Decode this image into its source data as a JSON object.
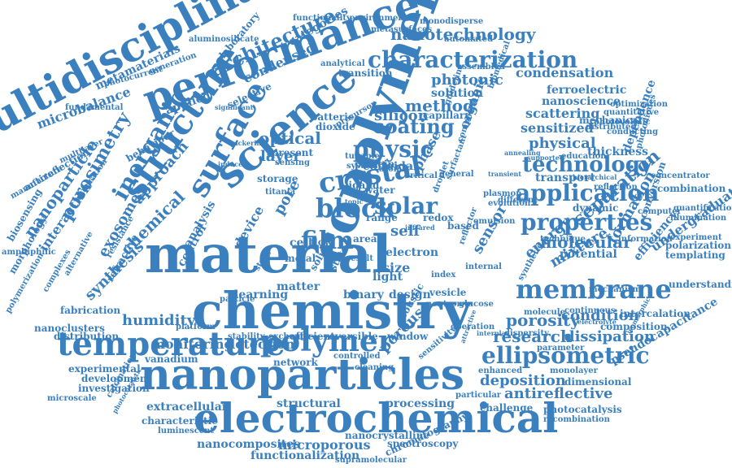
{
  "colors": {
    "text": "#3a7fbe",
    "background": "#ffffff"
  },
  "words": [
    {
      "text": "material"
    },
    {
      "text": "chemistry"
    },
    {
      "text": "nanoparticles"
    },
    {
      "text": "electrochemical"
    },
    {
      "text": "temperature"
    },
    {
      "text": "copolymer"
    },
    {
      "text": "multidisciplinary"
    },
    {
      "text": "performance"
    },
    {
      "text": "science"
    },
    {
      "text": "structure"
    },
    {
      "text": "surface"
    },
    {
      "text": "polymer"
    },
    {
      "text": "membrane"
    },
    {
      "text": "characterization"
    },
    {
      "text": "application"
    },
    {
      "text": "block"
    },
    {
      "text": "solar"
    },
    {
      "text": "crystal"
    },
    {
      "text": "film"
    },
    {
      "text": "ellipsometric"
    },
    {
      "text": "properties"
    },
    {
      "text": "technology"
    },
    {
      "text": "physic"
    },
    {
      "text": "coating"
    },
    {
      "text": "inorganic"
    },
    {
      "text": "porosimetry"
    },
    {
      "text": "nanoparticle"
    },
    {
      "text": "nanotechnology"
    },
    {
      "text": "architecture"
    },
    {
      "text": "condensed"
    },
    {
      "text": "optical"
    },
    {
      "text": "method"
    },
    {
      "text": "silicon"
    },
    {
      "text": "photonic"
    },
    {
      "text": "solution"
    },
    {
      "text": "condensation"
    },
    {
      "text": "ferroelectric"
    },
    {
      "text": "nanoscience"
    },
    {
      "text": "scattering"
    },
    {
      "text": "sensitized"
    },
    {
      "text": "physical"
    },
    {
      "text": "molecular"
    },
    {
      "text": "separation"
    },
    {
      "text": "porosity"
    },
    {
      "text": "condition"
    },
    {
      "text": "research"
    },
    {
      "text": "dissipation"
    },
    {
      "text": "deposition"
    },
    {
      "text": "antireflective"
    },
    {
      "text": "monitoring"
    },
    {
      "text": "detection"
    },
    {
      "text": "porous"
    },
    {
      "text": "humidity"
    },
    {
      "text": "chemical"
    },
    {
      "text": "synthesis"
    },
    {
      "text": "approach"
    },
    {
      "text": "interaction"
    },
    {
      "text": "microbalance"
    },
    {
      "text": "metamaterials"
    },
    {
      "text": "self"
    },
    {
      "text": "redox"
    },
    {
      "text": "pore"
    },
    {
      "text": "layer"
    },
    {
      "text": "cell"
    },
    {
      "text": "energy"
    },
    {
      "text": "sensor"
    },
    {
      "text": "mixture"
    },
    {
      "text": "formation"
    },
    {
      "text": "efficiency"
    },
    {
      "text": "undergraduate"
    },
    {
      "text": "thickness"
    },
    {
      "text": "mechanical"
    },
    {
      "text": "dependence"
    },
    {
      "text": "photovoltaic"
    },
    {
      "text": "learning"
    },
    {
      "text": "matter"
    },
    {
      "text": "binary"
    },
    {
      "text": "design"
    },
    {
      "text": "structural"
    },
    {
      "text": "processing"
    },
    {
      "text": "microporous"
    },
    {
      "text": "nanocrystalline"
    },
    {
      "text": "spectroscopy"
    },
    {
      "text": "functionalization"
    },
    {
      "text": "chromatography"
    },
    {
      "text": "nanocomposites"
    },
    {
      "text": "extracellular"
    },
    {
      "text": "fabrication"
    },
    {
      "text": "nanoclusters"
    },
    {
      "text": "distribution"
    },
    {
      "text": "vanadium"
    },
    {
      "text": "composition"
    },
    {
      "text": "intercalation"
    },
    {
      "text": "dimensional"
    },
    {
      "text": "monolayer"
    },
    {
      "text": "photocatalysis"
    },
    {
      "text": "recombination"
    },
    {
      "text": "challenge"
    },
    {
      "text": "pseudocapacitance"
    },
    {
      "text": "experimental"
    },
    {
      "text": "development"
    },
    {
      "text": "investigation"
    },
    {
      "text": "characteristic"
    },
    {
      "text": "luminescent"
    },
    {
      "text": "supramolecular"
    },
    {
      "text": "antireflection"
    },
    {
      "text": "biosensing"
    },
    {
      "text": "exosomes"
    },
    {
      "text": "controlled"
    },
    {
      "text": "potential"
    },
    {
      "text": "transport"
    },
    {
      "text": "dynamic"
    },
    {
      "text": "education"
    },
    {
      "text": "colloidal"
    },
    {
      "text": "capillary"
    },
    {
      "text": "organic"
    },
    {
      "text": "phase"
    },
    {
      "text": "applied"
    },
    {
      "text": "selective"
    },
    {
      "text": "batterie"
    },
    {
      "text": "dioxide"
    },
    {
      "text": "categories"
    },
    {
      "text": "laboratory"
    },
    {
      "text": "aluminosilicate"
    },
    {
      "text": "photocurrent"
    },
    {
      "text": "fundamental"
    },
    {
      "text": "environmental"
    },
    {
      "text": "metasurfaces"
    },
    {
      "text": "functionality"
    },
    {
      "text": "monodisperse"
    },
    {
      "text": "automated"
    },
    {
      "text": "transition"
    },
    {
      "text": "storage"
    },
    {
      "text": "ligand"
    },
    {
      "text": "protein"
    },
    {
      "text": "water"
    },
    {
      "text": "electron"
    },
    {
      "text": "range"
    },
    {
      "text": "size"
    },
    {
      "text": "area"
    },
    {
      "text": "flow"
    },
    {
      "text": "light"
    },
    {
      "text": "metal"
    },
    {
      "text": "device"
    },
    {
      "text": "analysis"
    },
    {
      "text": "control"
    },
    {
      "text": "refractive"
    },
    {
      "text": "efficient"
    },
    {
      "text": "reversible"
    },
    {
      "text": "window"
    },
    {
      "text": "network"
    },
    {
      "text": "stability"
    },
    {
      "text": "platform"
    },
    {
      "text": "cleaning"
    },
    {
      "text": "enhanced"
    },
    {
      "text": "particular"
    },
    {
      "text": "vesicle"
    },
    {
      "text": "sensitivity"
    },
    {
      "text": "acoustic"
    },
    {
      "text": "glucose"
    },
    {
      "text": "operation"
    },
    {
      "text": "parameter"
    },
    {
      "text": "dispersity"
    },
    {
      "text": "continuous"
    },
    {
      "text": "molecule"
    },
    {
      "text": "mechanism"
    },
    {
      "text": "synthetic"
    },
    {
      "text": "understanding"
    },
    {
      "text": "polarization"
    },
    {
      "text": "templating"
    },
    {
      "text": "experiment"
    },
    {
      "text": "illumination"
    },
    {
      "text": "quantification"
    },
    {
      "text": "combination"
    },
    {
      "text": "concentrator"
    },
    {
      "text": "conversion"
    },
    {
      "text": "computer"
    },
    {
      "text": "information"
    },
    {
      "text": "reflection"
    },
    {
      "text": "different"
    },
    {
      "text": "technique"
    },
    {
      "text": "emulsion"
    },
    {
      "text": "based"
    },
    {
      "text": "conducting"
    },
    {
      "text": "quantitative"
    },
    {
      "text": "distributed"
    },
    {
      "text": "optimization"
    },
    {
      "text": "photodiodes"
    },
    {
      "text": "plasmon"
    },
    {
      "text": "evolution"
    },
    {
      "text": "internal"
    },
    {
      "text": "reflector"
    },
    {
      "text": "generation"
    },
    {
      "text": "multilayer"
    },
    {
      "text": "behaviour"
    },
    {
      "text": "integration"
    },
    {
      "text": "manufacture"
    },
    {
      "text": "morphology"
    },
    {
      "text": "amphiphilic"
    },
    {
      "text": "polymerization"
    },
    {
      "text": "microscale"
    },
    {
      "text": "calcination"
    },
    {
      "text": "photocatalytic"
    },
    {
      "text": "complexes"
    },
    {
      "text": "alternative"
    },
    {
      "text": "resistance"
    },
    {
      "text": "present"
    },
    {
      "text": "sensing"
    },
    {
      "text": "titania"
    },
    {
      "text": "system"
    },
    {
      "text": "atomic"
    },
    {
      "text": "tunable"
    },
    {
      "text": "critical"
    },
    {
      "text": "general"
    },
    {
      "text": "analytical"
    },
    {
      "text": "assembled"
    },
    {
      "text": "biomedical"
    },
    {
      "text": "precursor"
    },
    {
      "text": "guideline"
    },
    {
      "text": "composite"
    },
    {
      "text": "droplet"
    },
    {
      "text": "surfactant"
    },
    {
      "text": "state"
    },
    {
      "text": "solid"
    },
    {
      "text": "particle"
    },
    {
      "text": "study"
    },
    {
      "text": "result"
    },
    {
      "text": "index"
    },
    {
      "text": "neutron"
    },
    {
      "text": "exchange"
    },
    {
      "text": "hierarchical"
    },
    {
      "text": "annealing"
    },
    {
      "text": "supported"
    },
    {
      "text": "transient"
    },
    {
      "text": "interplay"
    },
    {
      "text": "attractive"
    },
    {
      "text": "electrolyte"
    },
    {
      "text": "isomorphic"
    },
    {
      "text": "infrared"
    },
    {
      "text": "significant"
    },
    {
      "text": "topic"
    },
    {
      "text": "induced"
    },
    {
      "text": "pickering"
    }
  ]
}
